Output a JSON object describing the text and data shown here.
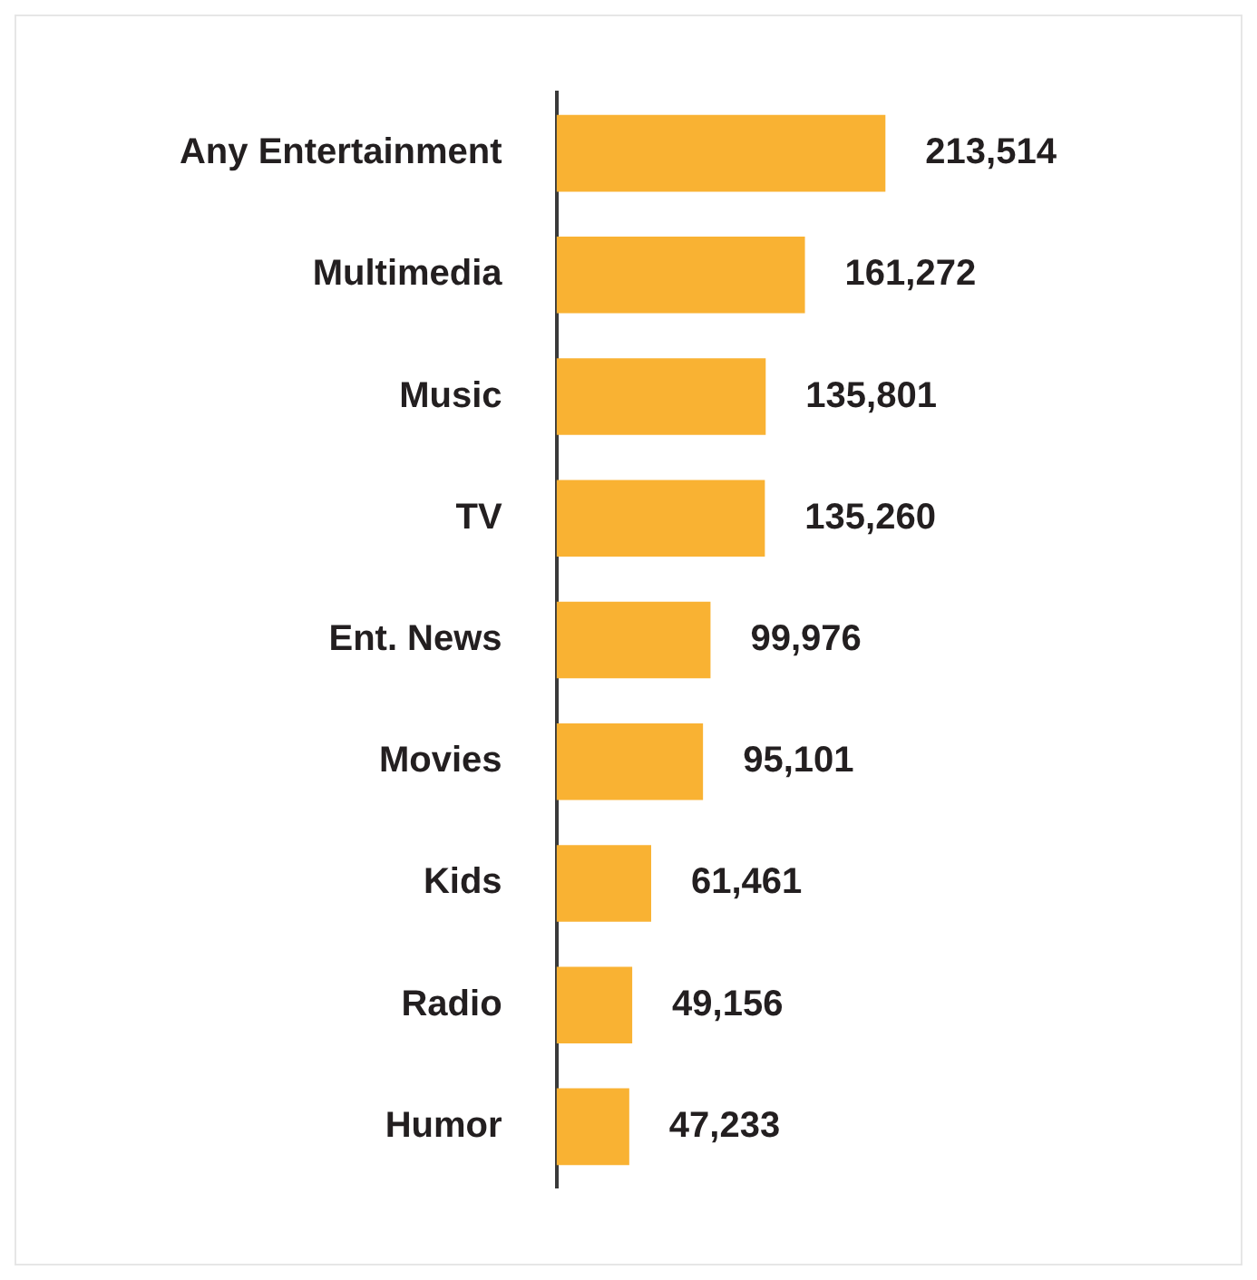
{
  "chart_data": {
    "type": "bar",
    "orientation": "horizontal",
    "categories": [
      "Any Entertainment",
      "Multimedia",
      "Music",
      "TV",
      "Ent. News",
      "Movies",
      "Kids",
      "Radio",
      "Humor"
    ],
    "values": [
      213514,
      161272,
      135801,
      135260,
      99976,
      95101,
      61461,
      49156,
      47233
    ],
    "value_labels": [
      "213,514",
      "161,272",
      "135,801",
      "135,260",
      "99,976",
      "95,101",
      "61,461",
      "49,156",
      "47,233"
    ],
    "color": "#f9b233",
    "tick_labels": "y"
  }
}
